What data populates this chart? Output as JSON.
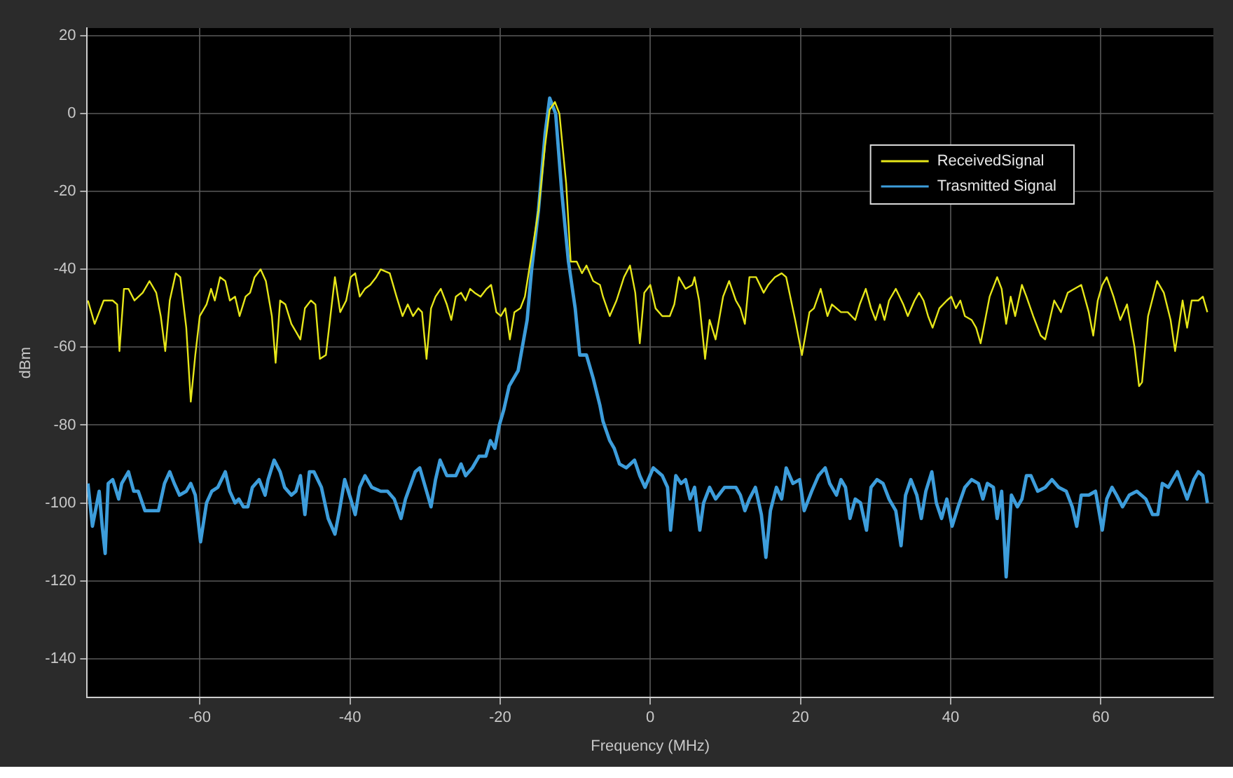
{
  "chart_data": {
    "type": "line",
    "xlabel": "Frequency (MHz)",
    "ylabel": "dBm",
    "xlim": [
      -75,
      75
    ],
    "xticks": [
      -60,
      -40,
      -20,
      0,
      20,
      40,
      60
    ],
    "ylim": [
      -150,
      22
    ],
    "yticks": [
      -140,
      -120,
      -100,
      -80,
      -60,
      -40,
      -20,
      0,
      20
    ],
    "grid": true,
    "legend": "top right",
    "marker": "none",
    "line_style": "solid",
    "series": [
      {
        "name": "ReceivedSignal",
        "color": "#e6e619",
        "x": [
          -74.9,
          -74.0,
          -72.8,
          -71.6,
          -71.0,
          -70.7,
          -70.1,
          -69.5,
          -68.7,
          -67.6,
          -66.7,
          -65.8,
          -65.2,
          -64.6,
          -64.0,
          -63.2,
          -62.6,
          -61.8,
          -61.2,
          -60.6,
          -60.0,
          -59.1,
          -58.5,
          -58.0,
          -57.3,
          -56.6,
          -56.0,
          -55.3,
          -54.7,
          -53.9,
          -53.3,
          -52.7,
          -51.9,
          -51.2,
          -50.4,
          -49.9,
          -49.3,
          -48.6,
          -47.8,
          -47.2,
          -46.6,
          -46.0,
          -45.2,
          -44.6,
          -44.0,
          -43.2,
          -42.6,
          -42.0,
          -41.3,
          -40.5,
          -39.9,
          -39.3,
          -38.7,
          -38.0,
          -37.3,
          -36.5,
          -35.9,
          -34.7,
          -33.8,
          -33.0,
          -32.3,
          -31.6,
          -30.9,
          -30.4,
          -29.8,
          -29.2,
          -28.6,
          -27.9,
          -27.1,
          -26.5,
          -25.9,
          -25.2,
          -24.6,
          -24.0,
          -23.4,
          -22.6,
          -21.8,
          -21.2,
          -20.5,
          -19.9,
          -19.3,
          -18.7,
          -18.1,
          -17.3,
          -16.7,
          -15.8,
          -14.9,
          -14.0,
          -13.4,
          -12.7,
          -12.1,
          -11.2,
          -10.6,
          -9.8,
          -9.1,
          -8.5,
          -7.6,
          -6.7,
          -6.3,
          -5.4,
          -4.5,
          -3.5,
          -2.7,
          -2.0,
          -1.4,
          -0.8,
          0,
          0.7,
          1.6,
          2.6,
          3.2,
          3.8,
          4.7,
          5.6,
          5.9,
          6.5,
          7.3,
          7.9,
          8.7,
          9.7,
          10.5,
          11.4,
          12.0,
          12.6,
          13.2,
          14.1,
          15.1,
          15.7,
          16.6,
          17.5,
          18.1,
          19.3,
          20.2,
          21.2,
          21.8,
          22.7,
          23.6,
          24.2,
          25.4,
          26.3,
          27.3,
          27.9,
          28.7,
          29.4,
          30.0,
          30.6,
          31.2,
          31.8,
          32.7,
          33.7,
          34.3,
          35.2,
          35.8,
          36.4,
          37.0,
          37.6,
          38.5,
          39.5,
          40.1,
          40.7,
          41.3,
          41.9,
          42.8,
          43.4,
          44.0,
          44.6,
          45.2,
          46.2,
          46.8,
          47.4,
          48.0,
          48.6,
          49.5,
          50.1,
          51.0,
          52.0,
          52.6,
          53.2,
          53.8,
          54.7,
          55.6,
          56.5,
          57.4,
          58.4,
          59.0,
          59.6,
          60.2,
          60.8,
          61.7,
          62.6,
          63.5,
          64.5,
          65.1,
          65.5,
          66.3,
          67.5,
          68.4,
          69.3,
          69.9,
          70.9,
          71.5,
          72.1,
          73.0,
          73.6,
          74.2
        ],
        "values": [
          -48,
          -54,
          -48,
          -48,
          -49,
          -61,
          -45,
          -45,
          -48,
          -46,
          -43,
          -46,
          -52,
          -61,
          -48,
          -41,
          -42,
          -55,
          -74,
          -62,
          -52,
          -49,
          -45,
          -48,
          -42,
          -43,
          -48,
          -47,
          -52,
          -47,
          -46,
          -42,
          -40,
          -43,
          -52,
          -64,
          -48,
          -49,
          -54,
          -56,
          -58,
          -50,
          -48,
          -49,
          -63,
          -62,
          -52,
          -42,
          -51,
          -48,
          -42,
          -41,
          -47,
          -45,
          -44,
          -42,
          -40,
          -41,
          -47,
          -52,
          -49,
          -52,
          -50,
          -51,
          -63,
          -50,
          -47,
          -45,
          -49,
          -53,
          -47,
          -46,
          -48,
          -45,
          -46,
          -47,
          -45,
          -44,
          -51,
          -52,
          -50,
          -58,
          -51,
          -50,
          -47,
          -36,
          -25,
          -8,
          1,
          3,
          0,
          -18,
          -38,
          -38,
          -41,
          -39,
          -43,
          -44,
          -47,
          -52,
          -48,
          -42,
          -39,
          -46,
          -59,
          -46,
          -44,
          -50,
          -52,
          -52,
          -49,
          -42,
          -45,
          -44,
          -42,
          -48,
          -63,
          -53,
          -58,
          -47,
          -43,
          -48,
          -50,
          -54,
          -42,
          -42,
          -46,
          -44,
          -42,
          -41,
          -42,
          -53,
          -62,
          -51,
          -50,
          -45,
          -52,
          -49,
          -51,
          -51,
          -53,
          -49,
          -45,
          -50,
          -53,
          -49,
          -53,
          -48,
          -45,
          -49,
          -52,
          -48,
          -46,
          -48,
          -52,
          -55,
          -50,
          -48,
          -47,
          -50,
          -48,
          -52,
          -53,
          -55,
          -59,
          -53,
          -47,
          -42,
          -45,
          -54,
          -47,
          -52,
          -44,
          -47,
          -52,
          -57,
          -58,
          -53,
          -48,
          -51,
          -46,
          -45,
          -44,
          -51,
          -57,
          -48,
          -44,
          -42,
          -47,
          -53,
          -49,
          -60,
          -70,
          -69,
          -52,
          -43,
          -46,
          -53,
          -61,
          -48,
          -55,
          -48,
          -48,
          -47,
          -51
        ]
      },
      {
        "name": "Trasmitted Signal",
        "color": "#3d9ddb",
        "x": [
          -74.9,
          -74.3,
          -73.7,
          -73.4,
          -73.0,
          -72.6,
          -72.2,
          -71.6,
          -70.8,
          -70.4,
          -69.5,
          -68.8,
          -68.2,
          -67.3,
          -65.5,
          -64.7,
          -64.0,
          -63.4,
          -62.7,
          -61.8,
          -61.2,
          -60.6,
          -59.9,
          -59.1,
          -58.4,
          -57.6,
          -56.6,
          -56.0,
          -55.3,
          -54.8,
          -54.2,
          -53.6,
          -53.0,
          -52.1,
          -51.3,
          -50.9,
          -50.1,
          -49.3,
          -48.7,
          -47.8,
          -47.2,
          -46.6,
          -46.0,
          -45.4,
          -44.8,
          -43.8,
          -42.9,
          -42.0,
          -41.4,
          -40.7,
          -39.9,
          -39.3,
          -38.7,
          -38.0,
          -37.1,
          -35.9,
          -35.0,
          -34.1,
          -33.2,
          -32.6,
          -31.3,
          -30.7,
          -29.8,
          -29.2,
          -28.6,
          -28.0,
          -27.1,
          -25.9,
          -25.2,
          -24.6,
          -23.7,
          -22.8,
          -21.9,
          -21.3,
          -20.7,
          -20.1,
          -19.5,
          -18.8,
          -17.6,
          -16.4,
          -15.8,
          -14.9,
          -14.0,
          -13.4,
          -12.6,
          -11.8,
          -10.9,
          -10.0,
          -9.4,
          -8.5,
          -7.6,
          -6.7,
          -6.3,
          -5.4,
          -4.8,
          -4.1,
          -3.2,
          -2.1,
          -1.4,
          -0.7,
          0.4,
          1.6,
          2.3,
          2.7,
          3.4,
          4.1,
          4.7,
          5.3,
          5.9,
          6.6,
          7.1,
          7.9,
          8.7,
          9.9,
          11.4,
          12.0,
          12.6,
          13.2,
          14.0,
          14.8,
          15.4,
          16.0,
          16.8,
          17.5,
          18.1,
          19.0,
          19.9,
          20.5,
          21.5,
          22.4,
          23.3,
          23.9,
          24.8,
          25.4,
          26.0,
          26.6,
          27.3,
          28.0,
          28.8,
          29.4,
          30.2,
          31.0,
          31.8,
          32.7,
          33.4,
          34.0,
          34.7,
          35.5,
          36.1,
          36.7,
          37.5,
          38.1,
          38.8,
          39.5,
          40.2,
          41.0,
          41.9,
          42.8,
          43.7,
          44.3,
          44.9,
          45.7,
          46.2,
          46.8,
          47.4,
          48.1,
          48.9,
          49.5,
          50.1,
          50.7,
          51.6,
          52.6,
          53.5,
          54.4,
          55.4,
          56.2,
          56.8,
          57.4,
          58.4,
          59.3,
          60.2,
          60.8,
          61.5,
          62.1,
          62.9,
          63.8,
          64.8,
          66.0,
          66.9,
          67.6,
          68.2,
          69.0,
          70.2,
          71.5,
          72.4,
          73.0,
          73.6,
          74.2
        ],
        "values": [
          -95,
          -106,
          -100,
          -97,
          -106,
          -113,
          -95,
          -94,
          -99,
          -95,
          -92,
          -97,
          -97,
          -102,
          -102,
          -95,
          -92,
          -95,
          -98,
          -97,
          -95,
          -98,
          -110,
          -100,
          -97,
          -96,
          -92,
          -97,
          -100,
          -99,
          -101,
          -101,
          -96,
          -94,
          -98,
          -94,
          -89,
          -92,
          -96,
          -98,
          -97,
          -93,
          -103,
          -92,
          -92,
          -96,
          -104,
          -108,
          -102,
          -94,
          -99,
          -103,
          -96,
          -93,
          -96,
          -97,
          -97,
          -99,
          -104,
          -99,
          -92,
          -91,
          -97,
          -101,
          -94,
          -89,
          -93,
          -93,
          -90,
          -93,
          -91,
          -88,
          -88,
          -84,
          -86,
          -80,
          -76,
          -70,
          -66,
          -53,
          -40,
          -25,
          -5,
          4,
          0,
          -20,
          -38,
          -50,
          -62,
          -62,
          -68,
          -75,
          -79,
          -84,
          -86,
          -90,
          -91,
          -89,
          -93,
          -96,
          -91,
          -93,
          -96,
          -107,
          -93,
          -95,
          -94,
          -99,
          -96,
          -107,
          -100,
          -96,
          -99,
          -96,
          -96,
          -98,
          -102,
          -99,
          -96,
          -103,
          -114,
          -102,
          -96,
          -99,
          -91,
          -95,
          -94,
          -102,
          -97,
          -93,
          -91,
          -95,
          -98,
          -94,
          -96,
          -104,
          -99,
          -100,
          -107,
          -96,
          -94,
          -95,
          -99,
          -102,
          -111,
          -98,
          -94,
          -98,
          -104,
          -97,
          -92,
          -100,
          -104,
          -99,
          -106,
          -101,
          -96,
          -94,
          -95,
          -99,
          -95,
          -96,
          -104,
          -97,
          -119,
          -98,
          -101,
          -99,
          -93,
          -93,
          -97,
          -96,
          -94,
          -96,
          -97,
          -101,
          -106,
          -98,
          -98,
          -97,
          -107,
          -99,
          -96,
          -98,
          -101,
          -98,
          -97,
          -99,
          -103,
          -103,
          -95,
          -96,
          -92,
          -99,
          -94,
          -92,
          -93,
          -100
        ]
      }
    ]
  }
}
